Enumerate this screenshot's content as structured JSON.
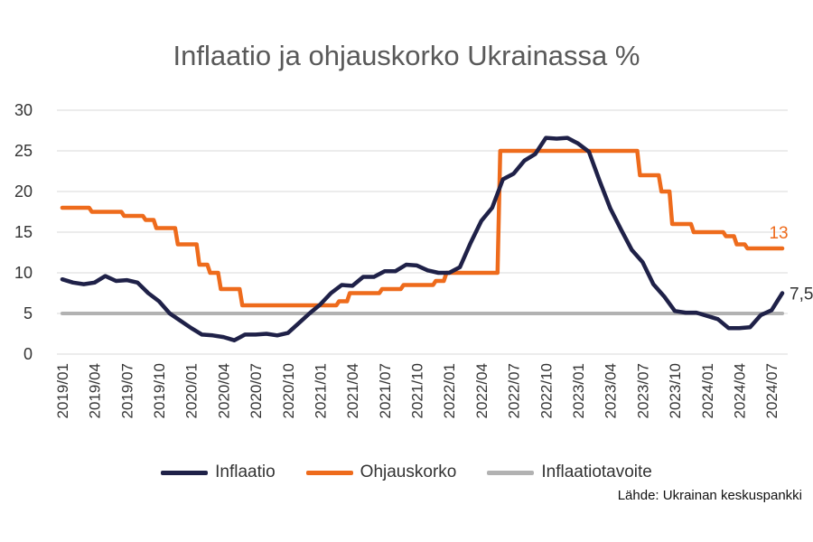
{
  "chart_data": {
    "type": "line",
    "title": "Inflaatio ja ohjauskorko Ukrainassa %",
    "xlabel": "",
    "ylabel": "",
    "ylim": [
      0,
      30
    ],
    "yticks": [
      0,
      5,
      10,
      15,
      20,
      25,
      30
    ],
    "grid": true,
    "legend_position": "bottom",
    "x": [
      "2019/01",
      "2019/02",
      "2019/03",
      "2019/04",
      "2019/05",
      "2019/06",
      "2019/07",
      "2019/08",
      "2019/09",
      "2019/10",
      "2019/11",
      "2019/12",
      "2020/01",
      "2020/02",
      "2020/03",
      "2020/04",
      "2020/05",
      "2020/06",
      "2020/07",
      "2020/08",
      "2020/09",
      "2020/10",
      "2020/11",
      "2020/12",
      "2021/01",
      "2021/02",
      "2021/03",
      "2021/04",
      "2021/05",
      "2021/06",
      "2021/07",
      "2021/08",
      "2021/09",
      "2021/10",
      "2021/11",
      "2021/12",
      "2022/01",
      "2022/02",
      "2022/03",
      "2022/04",
      "2022/05",
      "2022/06",
      "2022/07",
      "2022/08",
      "2022/09",
      "2022/10",
      "2022/11",
      "2022/12",
      "2023/01",
      "2023/02",
      "2023/03",
      "2023/04",
      "2023/05",
      "2023/06",
      "2023/07",
      "2023/08",
      "2023/09",
      "2023/10",
      "2023/11",
      "2023/12",
      "2024/01",
      "2024/02",
      "2024/03",
      "2024/04",
      "2024/05",
      "2024/06",
      "2024/07",
      "2024/08"
    ],
    "x_tick_labels": [
      "2019/01",
      "2019/04",
      "2019/07",
      "2019/10",
      "2020/01",
      "2020/04",
      "2020/07",
      "2020/10",
      "2021/01",
      "2021/04",
      "2021/07",
      "2021/10",
      "2022/01",
      "2022/04",
      "2022/07",
      "2022/10",
      "2023/01",
      "2023/04",
      "2023/07",
      "2023/10",
      "2024/01",
      "2024/04",
      "2024/07"
    ],
    "series": [
      {
        "name": "Inflaatio",
        "color": "#1f2148",
        "step": false,
        "end_label": "7,5",
        "values": [
          9.2,
          8.8,
          8.6,
          8.8,
          9.6,
          9.0,
          9.1,
          8.8,
          7.5,
          6.5,
          5.0,
          4.1,
          3.2,
          2.4,
          2.3,
          2.1,
          1.7,
          2.4,
          2.4,
          2.5,
          2.3,
          2.6,
          3.8,
          5.0,
          6.1,
          7.5,
          8.5,
          8.4,
          9.5,
          9.5,
          10.2,
          10.2,
          11.0,
          10.9,
          10.3,
          10.0,
          10.0,
          10.7,
          13.7,
          16.4,
          18.0,
          21.5,
          22.2,
          23.8,
          24.6,
          26.6,
          26.5,
          26.6,
          25.9,
          24.9,
          21.3,
          17.9,
          15.3,
          12.8,
          11.3,
          8.6,
          7.1,
          5.3,
          5.1,
          5.1,
          4.7,
          4.3,
          3.2,
          3.2,
          3.3,
          4.8,
          5.4,
          7.5
        ]
      },
      {
        "name": "Ohjauskorko",
        "color": "#ee6b1c",
        "step": true,
        "end_label": "13",
        "values": [
          18.0,
          18.0,
          18.0,
          17.5,
          17.5,
          17.5,
          17.0,
          17.0,
          16.5,
          15.5,
          15.5,
          13.5,
          13.5,
          11.0,
          10.0,
          8.0,
          8.0,
          6.0,
          6.0,
          6.0,
          6.0,
          6.0,
          6.0,
          6.0,
          6.0,
          6.0,
          6.5,
          7.5,
          7.5,
          7.5,
          8.0,
          8.0,
          8.5,
          8.5,
          8.5,
          9.0,
          10.0,
          10.0,
          10.0,
          10.0,
          10.0,
          25.0,
          25.0,
          25.0,
          25.0,
          25.0,
          25.0,
          25.0,
          25.0,
          25.0,
          25.0,
          25.0,
          25.0,
          25.0,
          22.0,
          22.0,
          20.0,
          16.0,
          16.0,
          15.0,
          15.0,
          15.0,
          14.5,
          13.5,
          13.0,
          13.0,
          13.0,
          13.0
        ]
      },
      {
        "name": "Inflaatiotavoite",
        "color": "#b2b2b2",
        "step": false,
        "end_label": "",
        "values": [
          5,
          5,
          5,
          5,
          5,
          5,
          5,
          5,
          5,
          5,
          5,
          5,
          5,
          5,
          5,
          5,
          5,
          5,
          5,
          5,
          5,
          5,
          5,
          5,
          5,
          5,
          5,
          5,
          5,
          5,
          5,
          5,
          5,
          5,
          5,
          5,
          5,
          5,
          5,
          5,
          5,
          5,
          5,
          5,
          5,
          5,
          5,
          5,
          5,
          5,
          5,
          5,
          5,
          5,
          5,
          5,
          5,
          5,
          5,
          5,
          5,
          5,
          5,
          5,
          5,
          5,
          5,
          5
        ]
      }
    ],
    "source": "Lähde: Ukrainan keskuspankki"
  }
}
